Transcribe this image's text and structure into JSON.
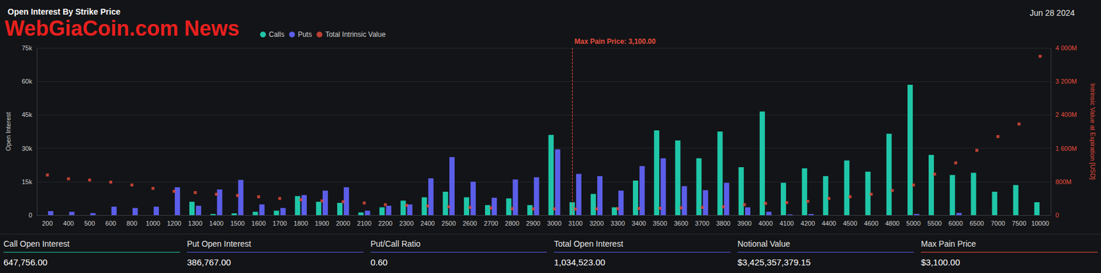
{
  "chart_data": {
    "type": "bar",
    "title": "Open Interest By Strike Price",
    "subtitle": "Jun 28 2024",
    "watermark": "WebGiaCoin.com News",
    "y_label": "Open Interest",
    "y2_label": "Intrinsic Value at Expiration [USD]",
    "categories": [
      "200",
      "400",
      "500",
      "600",
      "800",
      "1000",
      "1200",
      "1300",
      "1400",
      "1500",
      "1600",
      "1700",
      "1800",
      "1900",
      "2000",
      "2100",
      "2200",
      "2300",
      "2400",
      "2500",
      "2600",
      "2700",
      "2800",
      "2900",
      "3000",
      "3100",
      "3200",
      "3300",
      "3400",
      "3500",
      "3600",
      "3700",
      "3800",
      "3900",
      "4000",
      "4100",
      "4200",
      "4400",
      "4500",
      "4600",
      "4800",
      "5000",
      "5500",
      "6000",
      "6500",
      "7000",
      "7500",
      "10000"
    ],
    "series": [
      {
        "name": "Calls",
        "type": "bar",
        "color": "#1fc7a8",
        "values": [
          0,
          0,
          0,
          0,
          0,
          0,
          0,
          6000,
          500,
          800,
          1500,
          2000,
          8500,
          6000,
          5500,
          1200,
          3500,
          6500,
          8000,
          10500,
          8000,
          4500,
          7500,
          4500,
          36000,
          5800,
          9500,
          3500,
          15500,
          38000,
          33500,
          25500,
          37500,
          21500,
          46500,
          14500,
          21000,
          17500,
          24500,
          19500,
          36500,
          58500,
          27000,
          18000,
          19000,
          10500,
          13500,
          5800
        ]
      },
      {
        "name": "Puts",
        "type": "bar",
        "color": "#5b5ee8",
        "values": [
          1800,
          1500,
          900,
          3800,
          3200,
          3800,
          12500,
          4200,
          11500,
          15800,
          4800,
          3200,
          9000,
          11000,
          12500,
          2000,
          4200,
          4800,
          16500,
          26000,
          15000,
          7800,
          16000,
          17000,
          29500,
          18500,
          17500,
          11000,
          22000,
          25500,
          13000,
          11200,
          14500,
          3500,
          1500,
          300,
          500,
          0,
          0,
          0,
          0,
          500,
          0,
          1000,
          0,
          0,
          0,
          0
        ]
      },
      {
        "name": "Total Intrinsic Value",
        "type": "scatter",
        "axis": "y2",
        "color": "#e74c3c",
        "marker": "rect",
        "values": [
          960000000,
          870000000,
          840000000,
          790000000,
          720000000,
          640000000,
          570000000,
          540000000,
          500000000,
          470000000,
          440000000,
          400000000,
          370000000,
          340000000,
          320000000,
          290000000,
          250000000,
          235000000,
          220000000,
          200000000,
          185000000,
          170000000,
          155000000,
          150000000,
          150000000,
          145000000,
          150000000,
          155000000,
          160000000,
          165000000,
          175000000,
          185000000,
          200000000,
          250000000,
          280000000,
          300000000,
          330000000,
          400000000,
          440000000,
          500000000,
          590000000,
          720000000,
          980000000,
          1250000000,
          1550000000,
          1880000000,
          2180000000,
          3800000000
        ]
      }
    ],
    "ylim": [
      0,
      75000
    ],
    "yticks": [
      0,
      {
        "value": 15000,
        "label": "15k"
      },
      {
        "value": 30000,
        "label": "30k"
      },
      {
        "value": 45000,
        "label": "45k"
      },
      {
        "value": 60000,
        "label": "60k"
      },
      {
        "value": 75000,
        "label": "75k"
      }
    ],
    "y2lim": [
      0,
      4000000000
    ],
    "y2ticks": [
      0,
      {
        "value": 800000000,
        "label": "800M"
      },
      {
        "value": 1600000000,
        "label": "1 600M"
      },
      {
        "value": 2400000000,
        "label": "2 400M"
      },
      {
        "value": 3200000000,
        "label": "3 200M"
      },
      {
        "value": 4000000000,
        "label": "4 000M"
      }
    ],
    "annotation": {
      "x": "3100",
      "label": "Max Pain Price: 3,100.00",
      "color": "#e74c3c"
    },
    "grid": true,
    "legend": "top-left",
    "stats": [
      {
        "label": "Call Open Interest",
        "value": "647,756.00"
      },
      {
        "label": "Put Open Interest",
        "value": "386,767.00"
      },
      {
        "label": "Put/Call Ratio",
        "value": "0.60"
      },
      {
        "label": "Total Open Interest",
        "value": "1,034,523.00"
      },
      {
        "label": "Notional Value",
        "value": "$3,425,357,379.15"
      },
      {
        "label": "Max Pain Price",
        "value": "$3,100.00"
      }
    ]
  }
}
